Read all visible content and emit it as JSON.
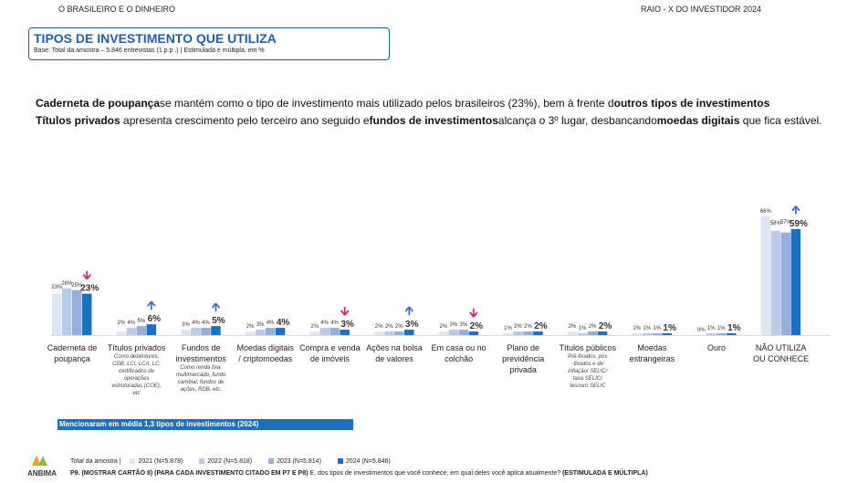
{
  "header": {
    "brand": "O BRASILEIRO E O DINHEIRO",
    "raio": "RAIO   - X DO INVESTIDOR 2024"
  },
  "title": "TIPOS DE INVESTIMENTO QUE UTILIZA",
  "base": "Base: Total da amostra      –  5.846 entrevistas (1          p.p .) | Estimulada e múltipla, em %",
  "summary": {
    "b1": "Caderneta de poupança",
    "t1": "se mantém como o tipo de investimento mais utilizado pelos brasileiros (23%), bem à frente d",
    "b2": "outros tipos de investimentos",
    "b3": "Títulos privados",
    "t2": "apresenta crescimento pelo terceiro ano seguido e",
    "b4": "fundos de investimentos",
    "t3": "alcança o 3º lugar, desbancando",
    "b5": "moedas digitais",
    "t4": "que fica estável."
  },
  "mention": "Mencionaram em média 1,3 tipos de investimentos (2024)",
  "legend": {
    "prefix": "Total da amostra |",
    "items": [
      {
        "label": "2021 (N=5.878)",
        "color": "#dde6f3"
      },
      {
        "label": "2022 (N=5.818)",
        "color": "#b9cbe6"
      },
      {
        "label": "2023 (N=5.814)",
        "color": "#94afdc"
      },
      {
        "label": "2024 (N=5.846)",
        "color": "#1a70c2"
      }
    ]
  },
  "question_bold": "P9. (MOSTRAR CARTÃO 8) (PARA CADA INVESTIMENTO CITADO EM P7 E P8)",
  "question_text": " E, dos tipos de investimentos que você conhece, em qual deles você aplica atualmente?",
  "question_end": " (ESTIMULADA E MÚLTIPLA)",
  "logo_text": "ANBIMA",
  "chart_data": {
    "type": "bar",
    "categories": [
      [
        "Caderneta de",
        "poupança"
      ],
      [
        "Títulos privados"
      ],
      [
        "Fundos de",
        "investimentos"
      ],
      [
        "Moedas digitais",
        "/ criptomoedas"
      ],
      [
        "Compra e venda",
        "de imóveis"
      ],
      [
        "Ações na bolsa",
        "de valores"
      ],
      [
        "Em casa ou no",
        "colchão"
      ],
      [
        "Plano de",
        "previdência",
        "privada"
      ],
      [
        "Títulos públicos"
      ],
      [
        "Moedas",
        "estrangeiras"
      ],
      [
        "Ouro"
      ],
      [
        "NÃO UTILIZA",
        "OU CONHECE"
      ]
    ],
    "notes": [
      [],
      [
        "Como debêntures,",
        "CDB, LCI, LCA, LC,",
        "certificados de",
        "operações",
        "estruturadas (COE),",
        "etc"
      ],
      [
        "Como renda fixa,",
        "multimercado, fundo",
        "cambial, fundos de",
        "ações, RDB, etc."
      ],
      [],
      [],
      [],
      [],
      [],
      [
        "Pré-fixados, pós",
        "-fixados e de",
        "inflação/ SELIC/",
        "taxa SELIC/",
        "tesouro SELIC"
      ],
      [],
      [],
      []
    ],
    "series": [
      {
        "name": "2021 (N=5.878)",
        "values": [
          23,
          2,
          3,
          2,
          2,
          2,
          2,
          1,
          2,
          1,
          0,
          66
        ]
      },
      {
        "name": "2022 (N=5.818)",
        "values": [
          26,
          4,
          4,
          3,
          4,
          2,
          3,
          2,
          1,
          1,
          1,
          58
        ]
      },
      {
        "name": "2023 (N=5.814)",
        "values": [
          25,
          5,
          4,
          4,
          4,
          2,
          3,
          2,
          2,
          1,
          1,
          57
        ]
      },
      {
        "name": "2024 (N=5.846)",
        "values": [
          23,
          6,
          5,
          4,
          3,
          3,
          2,
          2,
          2,
          1,
          1,
          59
        ]
      }
    ],
    "labels": [
      [
        "23%",
        "26%",
        "25%",
        "23%"
      ],
      [
        "2%",
        "4%",
        "5%",
        "6%"
      ],
      [
        "3%",
        "4%",
        "4%",
        "5%"
      ],
      [
        "2%",
        "3%",
        "4%",
        "4%"
      ],
      [
        "2%",
        "4%",
        "4%",
        "3%"
      ],
      [
        "2%",
        "2%",
        "2%",
        "3%"
      ],
      [
        "2%",
        "3%",
        "3%",
        "2%"
      ],
      [
        "1%",
        "2%",
        "2%",
        "2%"
      ],
      [
        "2%",
        "1%",
        "2%",
        "2%"
      ],
      [
        "1%",
        "1%",
        "1%",
        "1%"
      ],
      [
        "0%",
        "1%",
        "1%",
        "1%"
      ],
      [
        "66%",
        "58%",
        "57%",
        "59%"
      ]
    ],
    "trend": [
      "down",
      "up",
      "up",
      "none",
      "down",
      "up",
      "down",
      "none",
      "none",
      "none",
      "none",
      "up"
    ],
    "trend_colors": {
      "up": "#3d6fd6",
      "down": "#d6237a"
    },
    "ylim": [
      0,
      70
    ]
  }
}
